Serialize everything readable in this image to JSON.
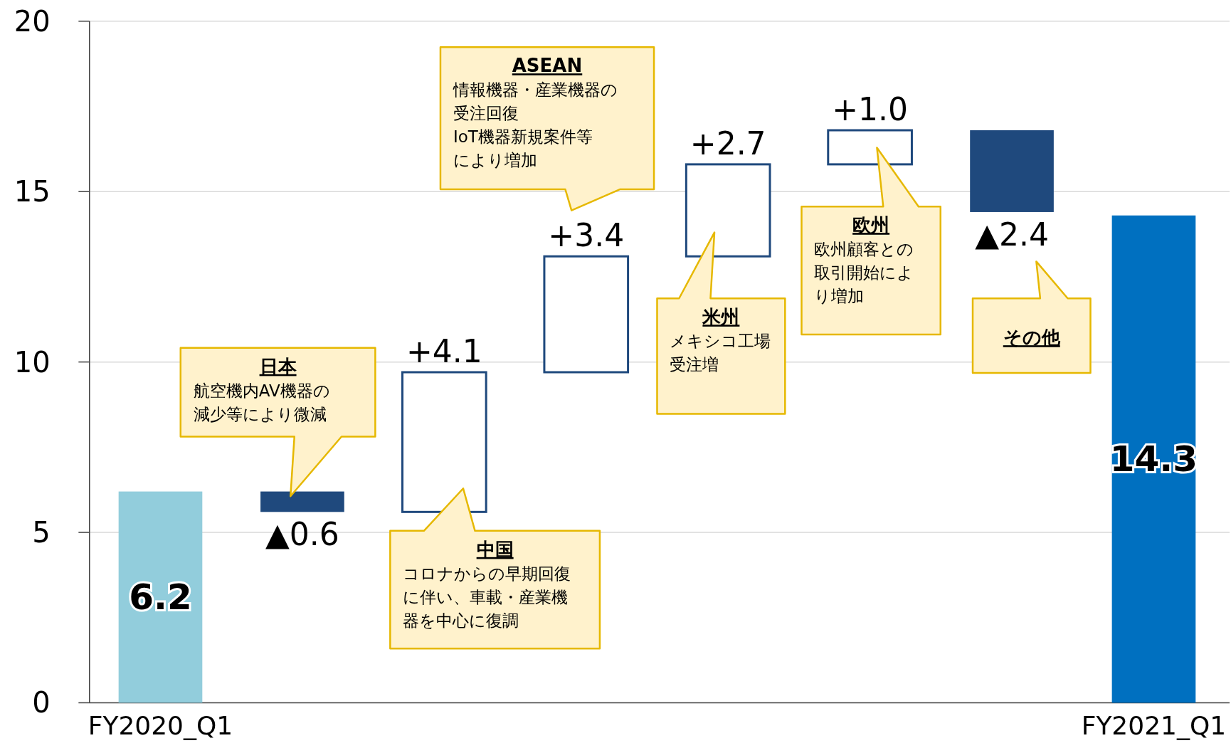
{
  "chart_data": {
    "type": "bar",
    "categories": [
      "FY2020_Q1",
      null,
      null,
      null,
      null,
      null,
      null,
      "FY2021_Q1"
    ],
    "values": [
      6.2,
      -0.6,
      4.1,
      3.4,
      2.7,
      1.0,
      -2.4,
      14.3
    ],
    "base": [
      0,
      6.2,
      5.6,
      9.7,
      13.1,
      15.8,
      16.8,
      0
    ],
    "colors": [
      "#92cddc",
      "#1f497d",
      "#ffffff",
      "#ffffff",
      "#ffffff",
      "#ffffff",
      "#1f497d",
      "#0070c0"
    ],
    "value_labels": [
      "6.2",
      "▲0.6",
      "+4.1",
      "+3.4",
      "+2.7",
      "+1.0",
      "▲2.4",
      "14.3"
    ],
    "ylim": [
      0,
      20
    ],
    "yticks": [
      0,
      5,
      10,
      15,
      20
    ],
    "grid": "y",
    "annotations": [
      "日本",
      "航空機内AV機器の減少等により微減",
      "中国",
      "コロナからの早期回復に伴い、車載・産業機器を中心に復調",
      "ASEAN",
      "情報機器・産業機器の受注回復IoT機器新規案件等により増加",
      "米州",
      "メキシコ工場受注増",
      "欧州",
      "欧州顧客との取引開始により増加",
      "その他"
    ]
  }
}
